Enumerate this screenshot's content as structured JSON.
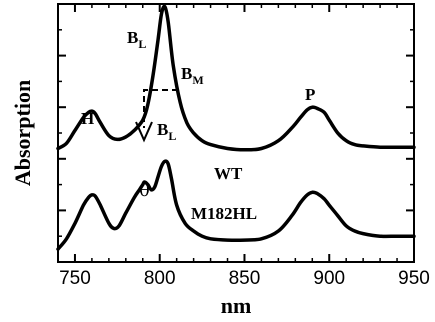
{
  "chart_data": {
    "type": "line",
    "xlabel": "nm",
    "ylabel": "Absorption",
    "xlim": [
      740,
      950
    ],
    "x_ticks": [
      750,
      800,
      850,
      900,
      950
    ],
    "y_ticks_unlabeled": true,
    "series": [
      {
        "name": "WT",
        "x": [
          740,
          745,
          750,
          755,
          758,
          760,
          762,
          765,
          770,
          775,
          780,
          785,
          790,
          793,
          796,
          799,
          801,
          803,
          805,
          808,
          812,
          816,
          820,
          825,
          830,
          840,
          850,
          860,
          870,
          878,
          883,
          887,
          890,
          893,
          897,
          900,
          905,
          910,
          915,
          920,
          930,
          940,
          950
        ],
        "y": [
          0.44,
          0.46,
          0.51,
          0.56,
          0.58,
          0.585,
          0.575,
          0.54,
          0.49,
          0.475,
          0.485,
          0.51,
          0.55,
          0.61,
          0.72,
          0.86,
          0.96,
          0.99,
          0.93,
          0.76,
          0.62,
          0.54,
          0.5,
          0.47,
          0.455,
          0.44,
          0.435,
          0.44,
          0.47,
          0.52,
          0.56,
          0.59,
          0.6,
          0.595,
          0.58,
          0.55,
          0.5,
          0.47,
          0.455,
          0.45,
          0.445,
          0.445,
          0.445
        ]
      },
      {
        "name": "M182HL",
        "x": [
          740,
          745,
          750,
          755,
          758,
          760,
          762,
          765,
          770,
          773,
          776,
          780,
          785,
          788,
          790,
          791,
          793,
          795,
          797,
          799,
          801,
          803,
          805,
          807,
          810,
          815,
          820,
          825,
          830,
          840,
          850,
          860,
          870,
          878,
          883,
          887,
          890,
          893,
          897,
          900,
          905,
          910,
          915,
          920,
          930,
          940,
          950
        ],
        "y": [
          0.05,
          0.09,
          0.15,
          0.22,
          0.25,
          0.26,
          0.255,
          0.22,
          0.15,
          0.13,
          0.14,
          0.19,
          0.25,
          0.28,
          0.3,
          0.31,
          0.3,
          0.28,
          0.29,
          0.33,
          0.37,
          0.39,
          0.38,
          0.32,
          0.22,
          0.15,
          0.12,
          0.1,
          0.09,
          0.085,
          0.085,
          0.09,
          0.12,
          0.18,
          0.23,
          0.26,
          0.27,
          0.265,
          0.245,
          0.22,
          0.18,
          0.14,
          0.12,
          0.11,
          0.1,
          0.1,
          0.1
        ]
      }
    ],
    "annotations": [
      {
        "id": "H",
        "text": "H"
      },
      {
        "id": "P",
        "text": "P"
      },
      {
        "id": "BL_top",
        "text": "B",
        "sub": "L"
      },
      {
        "id": "BM",
        "text": "B",
        "sub": "M"
      },
      {
        "id": "BL_mid",
        "text": "B",
        "sub": "L"
      },
      {
        "id": "WT",
        "text": "WT"
      },
      {
        "id": "theta",
        "text": "θ"
      },
      {
        "id": "M182HL",
        "text": "M182HL"
      }
    ],
    "colors": {
      "line": "#000000",
      "axis": "#000000",
      "background": "#ffffff"
    }
  }
}
